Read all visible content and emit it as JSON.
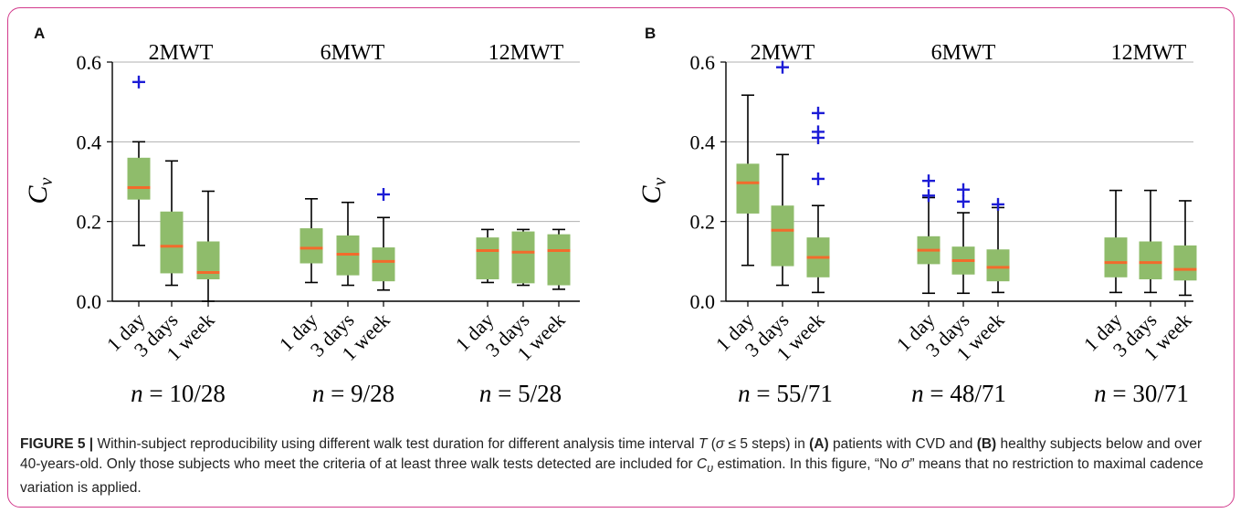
{
  "colors": {
    "box_fill": "#8fbc6b",
    "median": "#f26b2c",
    "outlier": "#1c1cd6",
    "grid": "#b0b0b0",
    "frame": "#d23a8c"
  },
  "chart_data": [
    {
      "panel": "A",
      "type": "box",
      "ylabel": "C_v",
      "ylim": [
        0,
        0.6
      ],
      "yticks": [
        "0.0",
        "0.2",
        "0.4",
        "0.6"
      ],
      "grid": "horizontal",
      "groups": [
        {
          "title": "2MWT",
          "n_label": "= 10/28",
          "boxes": [
            {
              "label": "1 day",
              "whislo": 0.14,
              "q1": 0.255,
              "med": 0.285,
              "q3": 0.36,
              "whishi": 0.4,
              "fliers": [
                0.55
              ]
            },
            {
              "label": "3 days",
              "whislo": 0.04,
              "q1": 0.07,
              "med": 0.138,
              "q3": 0.225,
              "whishi": 0.352,
              "fliers": []
            },
            {
              "label": "1 week",
              "whislo": 0.0,
              "q1": 0.055,
              "med": 0.072,
              "q3": 0.15,
              "whishi": 0.276,
              "fliers": []
            }
          ]
        },
        {
          "title": "6MWT",
          "n_label": "= 9/28",
          "boxes": [
            {
              "label": "1 day",
              "whislo": 0.047,
              "q1": 0.095,
              "med": 0.133,
              "q3": 0.183,
              "whishi": 0.257,
              "fliers": []
            },
            {
              "label": "3 days",
              "whislo": 0.04,
              "q1": 0.065,
              "med": 0.118,
              "q3": 0.165,
              "whishi": 0.248,
              "fliers": []
            },
            {
              "label": "1 week",
              "whislo": 0.028,
              "q1": 0.05,
              "med": 0.1,
              "q3": 0.135,
              "whishi": 0.21,
              "fliers": [
                0.268
              ]
            }
          ]
        },
        {
          "title": "12MWT",
          "n_label": "= 5/28",
          "boxes": [
            {
              "label": "1 day",
              "whislo": 0.047,
              "q1": 0.055,
              "med": 0.127,
              "q3": 0.16,
              "whishi": 0.18,
              "fliers": []
            },
            {
              "label": "3 days",
              "whislo": 0.04,
              "q1": 0.045,
              "med": 0.123,
              "q3": 0.175,
              "whishi": 0.18,
              "fliers": []
            },
            {
              "label": "1 week",
              "whislo": 0.03,
              "q1": 0.04,
              "med": 0.127,
              "q3": 0.168,
              "whishi": 0.18,
              "fliers": []
            }
          ]
        }
      ]
    },
    {
      "panel": "B",
      "type": "box",
      "ylabel": "C_v",
      "ylim": [
        0,
        0.6
      ],
      "yticks": [
        "0.0",
        "0.2",
        "0.4",
        "0.6"
      ],
      "grid": "horizontal",
      "groups": [
        {
          "title": "2MWT",
          "n_label": "= 55/71",
          "boxes": [
            {
              "label": "1 day",
              "whislo": 0.09,
              "q1": 0.22,
              "med": 0.297,
              "q3": 0.345,
              "whishi": 0.517,
              "fliers": []
            },
            {
              "label": "3 days",
              "whislo": 0.04,
              "q1": 0.088,
              "med": 0.178,
              "q3": 0.24,
              "whishi": 0.368,
              "fliers": [
                0.587
              ]
            },
            {
              "label": "1 week",
              "whislo": 0.022,
              "q1": 0.06,
              "med": 0.11,
              "q3": 0.16,
              "whishi": 0.24,
              "fliers": [
                0.307,
                0.41,
                0.425,
                0.472
              ]
            }
          ]
        },
        {
          "title": "6MWT",
          "n_label": "= 48/71",
          "boxes": [
            {
              "label": "1 day",
              "whislo": 0.02,
              "q1": 0.093,
              "med": 0.128,
              "q3": 0.163,
              "whishi": 0.26,
              "fliers": [
                0.265,
                0.302
              ]
            },
            {
              "label": "3 days",
              "whislo": 0.02,
              "q1": 0.067,
              "med": 0.102,
              "q3": 0.137,
              "whishi": 0.222,
              "fliers": [
                0.25,
                0.28
              ]
            },
            {
              "label": "1 week",
              "whislo": 0.022,
              "q1": 0.05,
              "med": 0.085,
              "q3": 0.13,
              "whishi": 0.235,
              "fliers": [
                0.243
              ]
            }
          ]
        },
        {
          "title": "12MWT",
          "n_label": "= 30/71",
          "boxes": [
            {
              "label": "1 day",
              "whislo": 0.022,
              "q1": 0.06,
              "med": 0.097,
              "q3": 0.16,
              "whishi": 0.278,
              "fliers": []
            },
            {
              "label": "3 days",
              "whislo": 0.022,
              "q1": 0.055,
              "med": 0.097,
              "q3": 0.15,
              "whishi": 0.278,
              "fliers": []
            },
            {
              "label": "1 week",
              "whislo": 0.015,
              "q1": 0.052,
              "med": 0.08,
              "q3": 0.14,
              "whishi": 0.252,
              "fliers": []
            }
          ]
        }
      ]
    }
  ],
  "caption": {
    "figure_label": "FIGURE 5 |",
    "segments": [
      {
        "t": " Within-subject reproducibility using different walk test duration for different analysis time interval "
      },
      {
        "t": "T",
        "i": true
      },
      {
        "t": " ("
      },
      {
        "t": "σ",
        "i": true
      },
      {
        "t": " ≤ 5 steps) in "
      },
      {
        "t": "(A)",
        "b": true
      },
      {
        "t": " patients with CVD and "
      },
      {
        "t": "(B)",
        "b": true
      },
      {
        "t": " healthy subjects below and over 40-years-old. Only those subjects who meet the criteria of at least three walk tests detected are included for "
      },
      {
        "t": "C",
        "i": true
      },
      {
        "t": "υ",
        "i": true,
        "sub": true
      },
      {
        "t": " estimation. In this figure, “No "
      },
      {
        "t": "σ",
        "i": true
      },
      {
        "t": "” means that no restriction to maximal cadence variation is applied."
      }
    ]
  }
}
